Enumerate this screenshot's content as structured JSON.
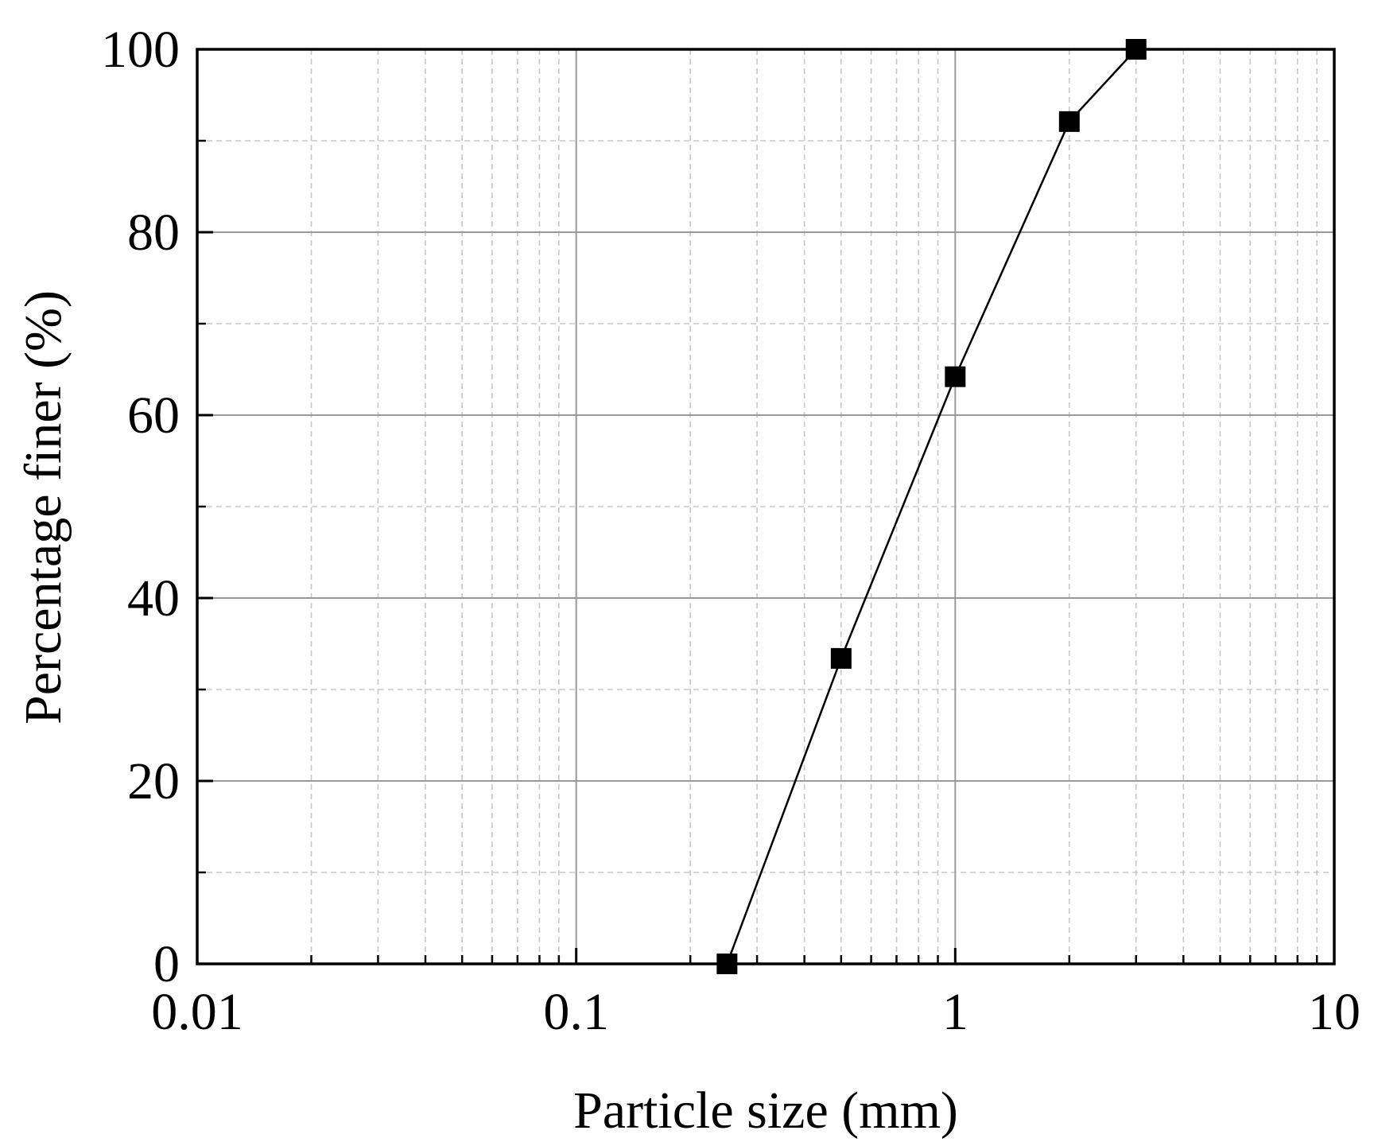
{
  "chart_data": {
    "type": "line",
    "title": "",
    "xlabel": "Particle size (mm)",
    "ylabel": "Percentage finer (%)",
    "x_scale": "log",
    "xlim": [
      0.01,
      10
    ],
    "ylim": [
      0,
      100
    ],
    "x_ticks": [
      "0.01",
      "0.1",
      "1",
      "10"
    ],
    "y_ticks": [
      "0",
      "20",
      "40",
      "60",
      "80",
      "100"
    ],
    "grid": {
      "major": true,
      "minor": true
    },
    "legend": "none",
    "series": [
      {
        "marker": "square",
        "color": "#000000",
        "x": [
          0.25,
          0.5,
          1,
          2,
          3
        ],
        "y": [
          0,
          33.4,
          64.2,
          92.1,
          100
        ]
      }
    ]
  },
  "colors": {
    "axis": "#000000",
    "major_grid": "#9a9a9a",
    "minor_grid": "#c8c8c8",
    "line": "#000000",
    "marker": "#000000"
  }
}
